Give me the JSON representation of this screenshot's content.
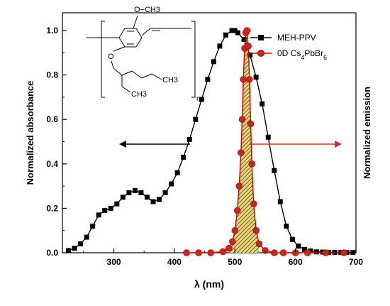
{
  "chart_data": {
    "type": "line",
    "xlabel": "λ (nm)",
    "ylabel_left": "Normalized absorbance",
    "ylabel_right": "Normalized emission",
    "xlim": [
      215,
      700
    ],
    "ylim": [
      0,
      1.08
    ],
    "x_ticks": [
      300,
      400,
      500,
      600,
      700
    ],
    "y_ticks": [
      0.0,
      0.2,
      0.4,
      0.6,
      0.8,
      1.0
    ],
    "x_tick_labels": [
      "300",
      "400",
      "500",
      "600",
      "700"
    ],
    "y_tick_labels": [
      "0.0",
      "0.2",
      "0.4",
      "0.6",
      "0.8",
      "1.0"
    ],
    "grid": false,
    "legend_position": "top-right",
    "series": [
      {
        "name": "MEH-PPV",
        "color": "#000000",
        "marker": "square",
        "x": [
          225,
          235,
          245,
          255,
          265,
          275,
          285,
          295,
          305,
          315,
          325,
          335,
          345,
          355,
          365,
          375,
          385,
          395,
          405,
          415,
          425,
          435,
          445,
          455,
          465,
          475,
          485,
          495,
          500,
          505,
          515,
          525,
          535,
          545,
          555,
          565,
          575,
          585,
          595,
          605,
          615,
          625,
          635,
          645,
          655,
          665,
          675,
          685,
          695
        ],
        "y": [
          0.01,
          0.02,
          0.04,
          0.07,
          0.12,
          0.17,
          0.19,
          0.2,
          0.22,
          0.25,
          0.27,
          0.28,
          0.27,
          0.25,
          0.23,
          0.24,
          0.27,
          0.31,
          0.36,
          0.43,
          0.51,
          0.6,
          0.69,
          0.78,
          0.86,
          0.93,
          0.98,
          1.0,
          1.0,
          0.99,
          0.96,
          0.89,
          0.79,
          0.67,
          0.52,
          0.37,
          0.23,
          0.12,
          0.06,
          0.03,
          0.015,
          0.008,
          0.004,
          0.003,
          0.002,
          0.002,
          0.001,
          0.001,
          0.001
        ]
      },
      {
        "name": "0D Cs4PbBr6",
        "color": "#cc0000",
        "marker": "circle",
        "x": [
          420,
          440,
          460,
          480,
          490,
          496,
          500,
          504,
          507,
          510,
          512,
          514,
          516,
          518,
          520,
          522,
          524,
          526,
          528,
          531,
          535,
          540,
          550,
          565,
          580,
          600,
          620,
          650,
          680
        ],
        "y": [
          0.0,
          0.0,
          0.0,
          0.005,
          0.02,
          0.05,
          0.1,
          0.19,
          0.3,
          0.45,
          0.6,
          0.78,
          0.92,
          0.99,
          1.0,
          0.93,
          0.78,
          0.58,
          0.4,
          0.22,
          0.1,
          0.04,
          0.01,
          0.0,
          0.0,
          0.0,
          0.0,
          0.0,
          0.0
        ]
      }
    ],
    "annotations": [
      {
        "text": "O−CH3",
        "role": "methoxy"
      },
      {
        "text": "CH3",
        "role": "butyl-end"
      },
      {
        "text": "CH3",
        "role": "ethyl-end"
      },
      {
        "text": "O",
        "role": "ether-oxygen"
      },
      {
        "text": "n",
        "role": "repeat-index"
      }
    ],
    "legend": {
      "meh_label": "MEH-PPV",
      "cs_prefix": "0D Cs",
      "cs_sub1": "4",
      "cs_mid": "PbBr",
      "cs_sub2": "6"
    }
  }
}
